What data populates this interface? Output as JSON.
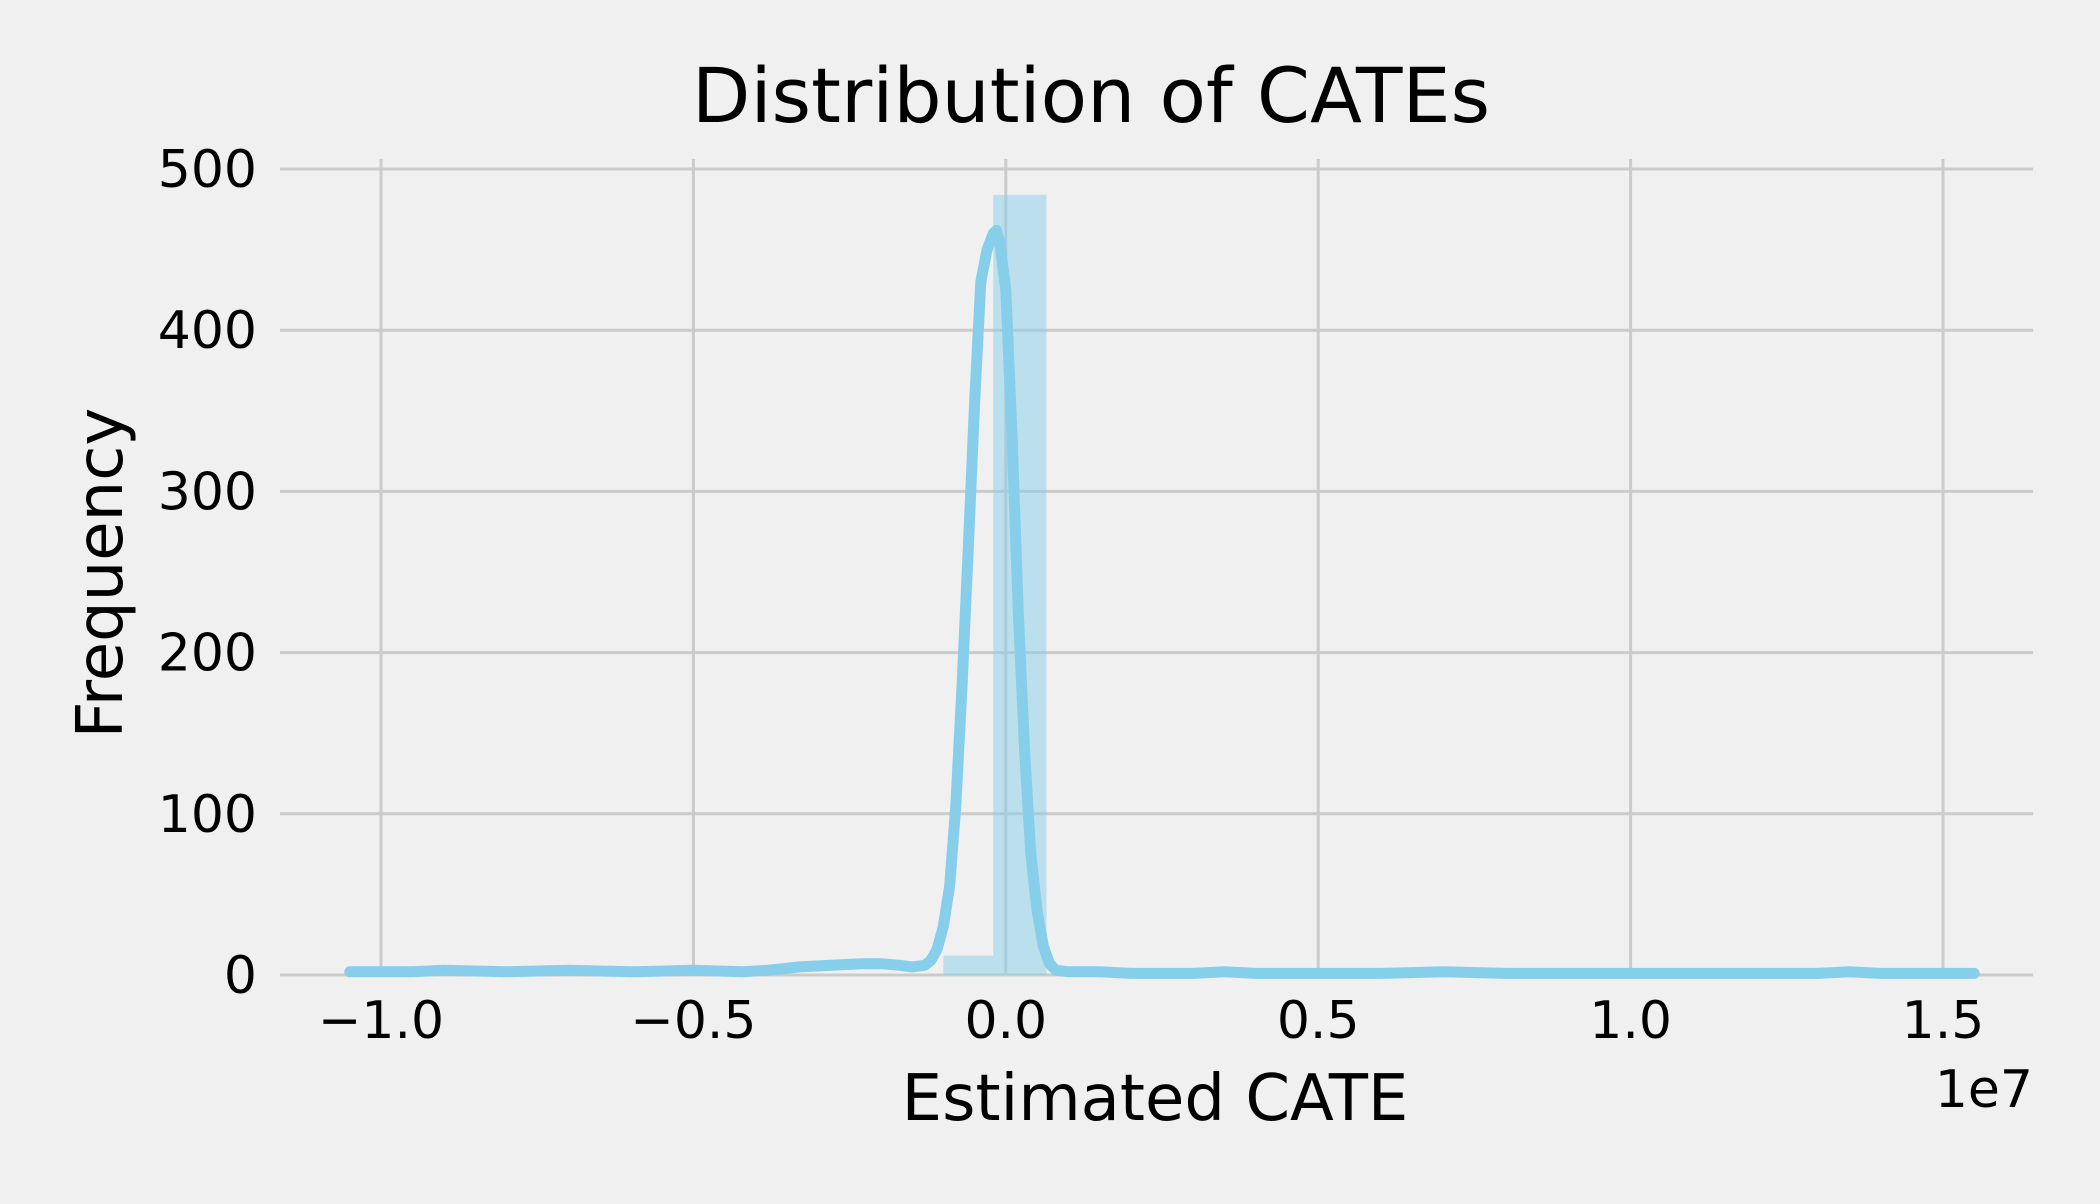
{
  "chart_data": {
    "type": "bar",
    "title": "Distribution of CATEs",
    "xlabel": "Estimated CATE",
    "ylabel": "Frequency",
    "x_offset_label": "1e7",
    "xlim": [
      -1.07,
      1.57
    ],
    "ylim": [
      0,
      500
    ],
    "xticks": [
      {
        "value": -1.0,
        "label": "−1.0"
      },
      {
        "value": -0.5,
        "label": "−0.5"
      },
      {
        "value": 0.0,
        "label": "0.0"
      },
      {
        "value": 0.5,
        "label": "0.5"
      },
      {
        "value": 1.0,
        "label": "1.0"
      },
      {
        "value": 1.5,
        "label": "1.5"
      }
    ],
    "yticks": [
      {
        "value": 0,
        "label": "0"
      },
      {
        "value": 100,
        "label": "100"
      },
      {
        "value": 200,
        "label": "200"
      },
      {
        "value": 300,
        "label": "300"
      },
      {
        "value": 400,
        "label": "400"
      },
      {
        "value": 500,
        "label": "500"
      }
    ],
    "grid": true,
    "histogram": {
      "bins": [
        {
          "x0": -0.1,
          "x1": -0.02,
          "count": 12
        },
        {
          "x0": -0.02,
          "x1": 0.065,
          "count": 484
        }
      ],
      "color": "#87ceeb",
      "opacity": 0.5
    },
    "kde": {
      "color": "#87ceeb",
      "points": [
        [
          -1.05,
          2
        ],
        [
          -0.95,
          2
        ],
        [
          -0.9,
          3
        ],
        [
          -0.8,
          2
        ],
        [
          -0.7,
          3
        ],
        [
          -0.6,
          2
        ],
        [
          -0.5,
          3
        ],
        [
          -0.42,
          2
        ],
        [
          -0.38,
          3
        ],
        [
          -0.33,
          5
        ],
        [
          -0.28,
          6
        ],
        [
          -0.23,
          7
        ],
        [
          -0.2,
          7
        ],
        [
          -0.17,
          6
        ],
        [
          -0.15,
          5
        ],
        [
          -0.13,
          6
        ],
        [
          -0.12,
          9
        ],
        [
          -0.11,
          16
        ],
        [
          -0.1,
          30
        ],
        [
          -0.09,
          55
        ],
        [
          -0.08,
          105
        ],
        [
          -0.07,
          180
        ],
        [
          -0.06,
          265
        ],
        [
          -0.05,
          355
        ],
        [
          -0.04,
          430
        ],
        [
          -0.03,
          450
        ],
        [
          -0.02,
          460
        ],
        [
          -0.015,
          462
        ],
        [
          -0.01,
          455
        ],
        [
          0.0,
          425
        ],
        [
          0.01,
          335
        ],
        [
          0.02,
          225
        ],
        [
          0.03,
          140
        ],
        [
          0.04,
          75
        ],
        [
          0.05,
          40
        ],
        [
          0.06,
          18
        ],
        [
          0.07,
          7
        ],
        [
          0.08,
          3
        ],
        [
          0.1,
          2
        ],
        [
          0.15,
          2
        ],
        [
          0.2,
          1
        ],
        [
          0.3,
          1
        ],
        [
          0.35,
          2
        ],
        [
          0.4,
          1
        ],
        [
          0.5,
          1
        ],
        [
          0.6,
          1
        ],
        [
          0.7,
          2
        ],
        [
          0.8,
          1
        ],
        [
          0.9,
          1
        ],
        [
          1.0,
          1
        ],
        [
          1.1,
          1
        ],
        [
          1.2,
          1
        ],
        [
          1.3,
          1
        ],
        [
          1.35,
          2
        ],
        [
          1.4,
          1
        ],
        [
          1.5,
          1
        ],
        [
          1.55,
          1
        ]
      ]
    }
  }
}
